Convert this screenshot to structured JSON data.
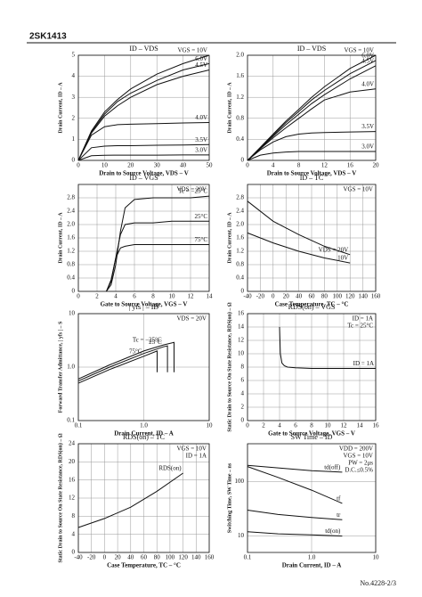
{
  "header": {
    "title": "2SK1413"
  },
  "footer": {
    "page": "No.4228-2/3"
  },
  "chart_data": [
    {
      "type": "line",
      "title": "ID – VDS",
      "x_label": "Drain to Source Voltage, VDS – V",
      "y_label": "Drain Current, ID – A",
      "color": "#111111",
      "grid": true,
      "xlim": [
        0,
        50
      ],
      "xticks": [
        0,
        10,
        20,
        30,
        40,
        50
      ],
      "ylim": [
        0,
        5
      ],
      "yticks": [
        0,
        1,
        2,
        3,
        4,
        5
      ],
      "series": [
        {
          "name": "VGS = 10V",
          "x": [
            0,
            5,
            10,
            15,
            20,
            30,
            40,
            50
          ],
          "values": [
            0,
            1.4,
            2.3,
            2.9,
            3.4,
            4.1,
            4.6,
            5.0
          ]
        },
        {
          "name": "6.0V",
          "x": [
            0,
            5,
            10,
            15,
            20,
            30,
            40,
            50
          ],
          "values": [
            0,
            1.35,
            2.2,
            2.8,
            3.2,
            3.8,
            4.3,
            4.6
          ]
        },
        {
          "name": "4.5V",
          "x": [
            0,
            5,
            10,
            15,
            20,
            30,
            40,
            50
          ],
          "values": [
            0,
            1.3,
            2.1,
            2.6,
            3.0,
            3.6,
            4.0,
            4.3
          ]
        },
        {
          "name": "4.0V",
          "x": [
            0,
            5,
            10,
            15,
            20,
            30,
            40,
            50
          ],
          "values": [
            0,
            1.2,
            1.6,
            1.7,
            1.72,
            1.75,
            1.78,
            1.8
          ]
        },
        {
          "name": "3.5V",
          "x": [
            0,
            5,
            10,
            15,
            20,
            30,
            40,
            50
          ],
          "values": [
            0,
            0.6,
            0.68,
            0.7,
            0.7,
            0.72,
            0.73,
            0.75
          ]
        },
        {
          "name": "3.0V",
          "x": [
            0,
            5,
            10,
            15,
            20,
            30,
            40,
            50
          ],
          "values": [
            0,
            0.22,
            0.24,
            0.25,
            0.25,
            0.25,
            0.26,
            0.26
          ]
        }
      ]
    },
    {
      "type": "line",
      "title": "ID – VDS",
      "x_label": "Drain to Source Voltage, VDS – V",
      "y_label": "Drain Current, ID – A",
      "color": "#111111",
      "grid": true,
      "xlim": [
        0,
        20
      ],
      "xticks": [
        0,
        4,
        8,
        12,
        16,
        20
      ],
      "ylim": [
        0,
        2
      ],
      "yticks": [
        0,
        0.4,
        0.8,
        1.2,
        1.6,
        {
          "value": 2,
          "label": "2.0"
        }
      ],
      "series": [
        {
          "name": "VGS = 10V",
          "x": [
            0,
            2,
            4,
            6,
            8,
            10,
            12,
            16,
            20
          ],
          "values": [
            0,
            0.25,
            0.5,
            0.75,
            0.97,
            1.2,
            1.4,
            1.75,
            2.0
          ]
        },
        {
          "name": "6.0V",
          "x": [
            0,
            2,
            4,
            6,
            8,
            10,
            12,
            16,
            20
          ],
          "values": [
            0,
            0.24,
            0.48,
            0.72,
            0.93,
            1.15,
            1.33,
            1.65,
            1.9
          ]
        },
        {
          "name": "4.5V",
          "x": [
            0,
            2,
            4,
            6,
            8,
            10,
            12,
            16,
            20
          ],
          "values": [
            0,
            0.23,
            0.46,
            0.68,
            0.88,
            1.08,
            1.25,
            1.55,
            1.8
          ]
        },
        {
          "name": "4.0V",
          "x": [
            0,
            2,
            4,
            6,
            8,
            10,
            12,
            16,
            20
          ],
          "values": [
            0,
            0.22,
            0.43,
            0.62,
            0.8,
            0.98,
            1.15,
            1.3,
            1.36
          ]
        },
        {
          "name": "3.5V",
          "x": [
            0,
            2,
            4,
            6,
            8,
            10,
            12,
            16,
            20
          ],
          "values": [
            0,
            0.2,
            0.35,
            0.45,
            0.5,
            0.52,
            0.53,
            0.54,
            0.55
          ]
        },
        {
          "name": "3.0V",
          "x": [
            0,
            2,
            4,
            6,
            8,
            10,
            12,
            16,
            20
          ],
          "values": [
            0,
            0.1,
            0.14,
            0.16,
            0.17,
            0.17,
            0.17,
            0.17,
            0.17
          ]
        }
      ]
    },
    {
      "type": "line",
      "title": "ID – VGS",
      "x_label": "Gate to Source Voltage, VGS – V",
      "y_label": "Drain Current, ID – A",
      "color": "#111111",
      "grid": true,
      "annotations": [
        "VDS = 20V"
      ],
      "xlim": [
        0,
        14
      ],
      "xticks": [
        0,
        2,
        4,
        6,
        8,
        10,
        12,
        14
      ],
      "ylim": [
        0,
        3.2
      ],
      "yticks": [
        0,
        0.4,
        0.8,
        1.2,
        1.6,
        {
          "value": 2,
          "label": "2.0"
        },
        2.4,
        2.8
      ],
      "series": [
        {
          "name": "Tc = −25°C",
          "x": [
            3,
            3.5,
            4,
            4.5,
            5,
            6,
            8,
            10,
            12,
            14
          ],
          "values": [
            0,
            0.2,
            0.8,
            1.8,
            2.5,
            2.75,
            2.8,
            2.8,
            2.8,
            2.85
          ]
        },
        {
          "name": "25°C",
          "x": [
            3,
            3.5,
            4,
            4.5,
            5,
            6,
            8,
            10,
            12,
            14
          ],
          "values": [
            0,
            0.3,
            1.0,
            1.7,
            2.0,
            2.05,
            2.05,
            2.1,
            2.1,
            2.1
          ]
        },
        {
          "name": "75°C",
          "x": [
            3,
            3.5,
            4,
            4.5,
            5,
            6,
            8,
            10,
            12,
            14
          ],
          "values": [
            0,
            0.35,
            1.0,
            1.3,
            1.35,
            1.4,
            1.4,
            1.4,
            1.4,
            1.4
          ]
        }
      ]
    },
    {
      "type": "line",
      "title": "ID – TC",
      "x_label": "Case Temperature, TC – °C",
      "y_label": "Drain Current, ID – A",
      "color": "#111111",
      "grid": true,
      "annotations": [
        "VGS = 10V"
      ],
      "xlim": [
        -40,
        160
      ],
      "xticks": [
        -40,
        -20,
        0,
        20,
        40,
        60,
        80,
        100,
        120,
        140,
        160
      ],
      "ylim": [
        0,
        3.2
      ],
      "yticks": [
        0,
        0.4,
        0.8,
        1.2,
        1.6,
        {
          "value": 2,
          "label": "2.0"
        },
        2.4,
        2.8
      ],
      "series": [
        {
          "name": "VDS = 20V",
          "x": [
            -40,
            0,
            40,
            80,
            120
          ],
          "values": [
            2.7,
            2.1,
            1.7,
            1.35,
            1.1
          ]
        },
        {
          "name": "10V",
          "x": [
            -40,
            0,
            40,
            80,
            120
          ],
          "values": [
            1.75,
            1.45,
            1.2,
            1.0,
            0.85
          ]
        }
      ]
    },
    {
      "type": "line",
      "title": "| yfs | – ID",
      "x_label": "Drain Current, ID – A",
      "y_label": "Forward Transfer Admittance, | yfs | – S",
      "color": "#111111",
      "grid": true,
      "xlog": true,
      "ylog": true,
      "annotations": [
        "VDS = 20V"
      ],
      "xlim": [
        0.1,
        10
      ],
      "xticks": [
        0.1,
        {
          "value": 1,
          "label": "1.0"
        },
        10
      ],
      "ylim": [
        0.1,
        10
      ],
      "yticks": [
        0.1,
        {
          "value": 1,
          "label": "1.0"
        },
        10
      ],
      "series": [
        {
          "name": "Tc = −25°C",
          "x": [
            0.1,
            0.3,
            1,
            2,
            2.9,
            2.9
          ],
          "values": [
            0.6,
            1.1,
            2.0,
            2.6,
            2.9,
            0.8
          ]
        },
        {
          "name": "25°C",
          "x": [
            0.1,
            0.3,
            1,
            2,
            2.3,
            2.3
          ],
          "values": [
            0.55,
            1.0,
            1.8,
            2.4,
            2.5,
            0.8
          ]
        },
        {
          "name": "75°C",
          "x": [
            0.1,
            0.3,
            1,
            1.6,
            1.6
          ],
          "values": [
            0.5,
            0.9,
            1.6,
            2.0,
            0.8
          ]
        }
      ]
    },
    {
      "type": "line",
      "title": "RDS(on) – VGS",
      "x_label": "Gate to Source Voltage, VGS – V",
      "y_label": "Static Drain to Source On State Resistance, RDS(on) – Ω",
      "color": "#111111",
      "grid": true,
      "annotations": [
        "ID = 1A",
        "Tc = 25°C"
      ],
      "xlim": [
        0,
        16
      ],
      "xticks": [
        0,
        2,
        4,
        6,
        8,
        10,
        12,
        14,
        16
      ],
      "ylim": [
        0,
        16
      ],
      "yticks": [
        0,
        2,
        4,
        6,
        8,
        10,
        12,
        14,
        16
      ],
      "series": [
        {
          "name": "ID = 1A",
          "x": [
            4,
            4.1,
            4.3,
            4.6,
            5,
            6,
            8,
            10,
            12,
            14,
            16
          ],
          "values": [
            14,
            10,
            8.6,
            8.2,
            8.0,
            7.9,
            7.8,
            7.8,
            7.8,
            7.8,
            7.8
          ]
        }
      ]
    },
    {
      "type": "line",
      "title": "RDS(on) – TC",
      "x_label": "Case Temperature, TC – °C",
      "y_label": "Static Drain to Source On State Resistance, RDS(on) – Ω",
      "color": "#111111",
      "grid": true,
      "annotations": [
        "VGS = 10V",
        "ID = 1A"
      ],
      "xlim": [
        -40,
        160
      ],
      "xticks": [
        -40,
        -20,
        0,
        20,
        40,
        60,
        80,
        100,
        120,
        140,
        160
      ],
      "ylim": [
        0,
        24
      ],
      "yticks": [
        0,
        4,
        8,
        12,
        16,
        20,
        24
      ],
      "series": [
        {
          "name": "RDS(on)",
          "x": [
            -40,
            0,
            40,
            80,
            120
          ],
          "values": [
            5.5,
            7.5,
            10,
            13.5,
            17.5
          ]
        }
      ]
    },
    {
      "type": "line",
      "title": "SW Time – ID",
      "x_label": "Drain Current, ID – A",
      "y_label": "Switching Time, SW Time – ns",
      "color": "#111111",
      "grid": true,
      "xlog": true,
      "ylog": true,
      "annotations": [
        "VDD = 200V",
        "VGS = 10V",
        "PW = 2μs",
        "D.C.≤0.5%"
      ],
      "xlim": [
        0.1,
        10
      ],
      "xticks": [
        0.1,
        {
          "value": 1,
          "label": "1.0"
        },
        10
      ],
      "ylim": [
        5,
        500
      ],
      "yticks": [
        10,
        100
      ],
      "series": [
        {
          "name": "td(off)",
          "x": [
            0.1,
            0.3,
            1,
            3
          ],
          "values": [
            200,
            180,
            160,
            150
          ]
        },
        {
          "name": "tf",
          "x": [
            0.1,
            0.3,
            1,
            3
          ],
          "values": [
            190,
            120,
            70,
            40
          ]
        },
        {
          "name": "tr",
          "x": [
            0.1,
            0.3,
            1,
            3
          ],
          "values": [
            30,
            25,
            22,
            20
          ]
        },
        {
          "name": "td(on)",
          "x": [
            0.1,
            0.3,
            1,
            3
          ],
          "values": [
            12,
            11,
            10.5,
            10
          ]
        }
      ]
    }
  ]
}
